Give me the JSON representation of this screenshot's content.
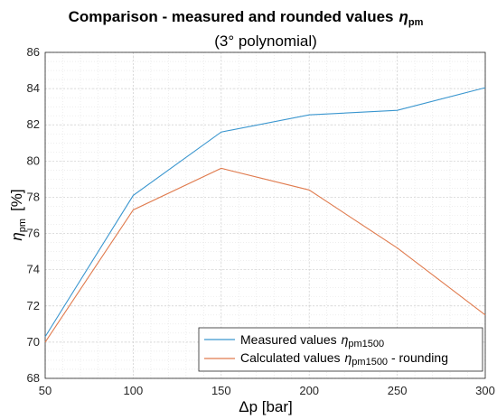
{
  "chart_data": {
    "type": "line",
    "title": "Comparison - measured and rounded values",
    "title_symbol": "η",
    "title_symbol_sub": "pm",
    "subtitle": "(3° polynomial)",
    "xlabel": "Δp  [bar]",
    "ylabel_symbol": "η",
    "ylabel_sub": "pm",
    "ylabel_unit": "[%]",
    "xlim": [
      50,
      300
    ],
    "ylim": [
      68,
      86
    ],
    "x_ticks": [
      50,
      100,
      150,
      200,
      250,
      300
    ],
    "y_ticks": [
      68,
      70,
      72,
      74,
      76,
      78,
      80,
      82,
      84,
      86
    ],
    "grid": true,
    "legend_position": "bottom-right",
    "x": [
      50,
      100,
      150,
      200,
      250,
      300
    ],
    "series": [
      {
        "name": "Measured values",
        "name_symbol": "η",
        "name_sub": "pm1500",
        "name_suffix": "",
        "color": "#3a96cf",
        "values": [
          70.3,
          78.1,
          81.6,
          82.55,
          82.8,
          84.05
        ]
      },
      {
        "name": "Calculated values",
        "name_symbol": "η",
        "name_sub": "pm1500",
        "name_suffix": " - rounding",
        "color": "#e07b4e",
        "values": [
          70.0,
          77.3,
          79.6,
          78.4,
          75.2,
          71.5
        ]
      }
    ]
  }
}
